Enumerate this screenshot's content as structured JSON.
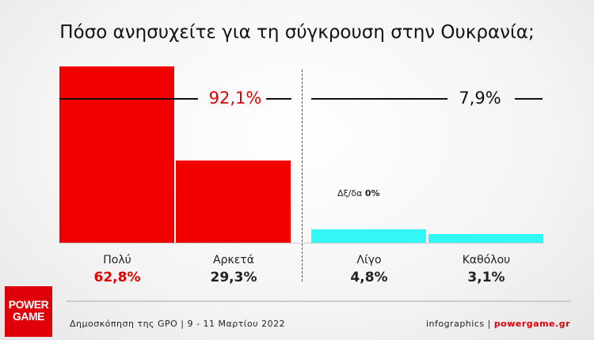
{
  "chart_data": {
    "type": "bar",
    "title": "Πόσο ανησυχείτε για τη σύγκρουση στην Ουκρανία;",
    "categories": [
      "Πολύ",
      "Αρκετά",
      "Λίγο",
      "Καθόλου"
    ],
    "values": [
      62.8,
      29.3,
      4.8,
      3.1
    ],
    "value_labels": [
      "62,8%",
      "29,3%",
      "4,8%",
      "3,1%"
    ],
    "groups": [
      {
        "label": "92,1%",
        "value": 92.1
      },
      {
        "label": "7,9%",
        "value": 7.9
      }
    ],
    "dont_know": {
      "label": "Δξ/δα",
      "value": "0%"
    },
    "colors": {
      "concerned": "#f20000",
      "not_concerned": "#33f6f6"
    }
  },
  "footer": {
    "source": "Δημοσκόπηση της GPO | 9 - 11 Μαρτίου 2022",
    "credit_prefix": "infographics | ",
    "credit_site": "powergame.gr"
  },
  "logo": {
    "line1": "POWER",
    "line2": "GAME"
  }
}
